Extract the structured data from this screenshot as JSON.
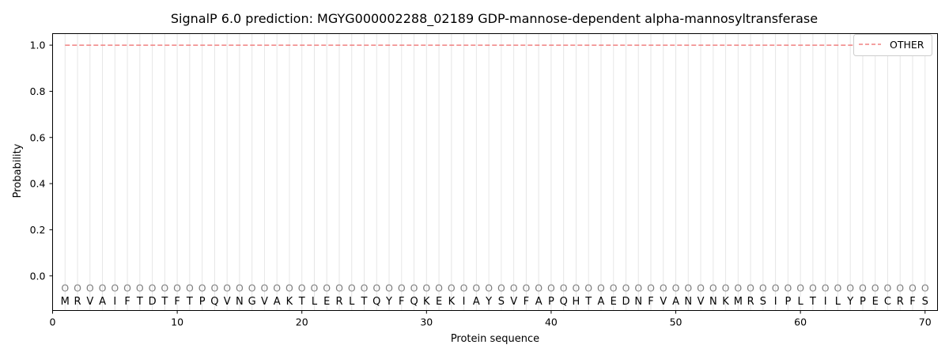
{
  "chart_data": {
    "type": "line",
    "title": "SignalP 6.0 prediction: MGYG000002288_02189 GDP-mannose-dependent alpha-mannosyltransferase",
    "xlabel": "Protein sequence",
    "ylabel": "Probability",
    "xlim": [
      0,
      71
    ],
    "ylim": [
      -0.15,
      1.05
    ],
    "xticks": [
      0,
      10,
      20,
      30,
      40,
      50,
      60,
      70
    ],
    "yticks": [
      0.0,
      0.2,
      0.4,
      0.6,
      0.8,
      1.0
    ],
    "ytick_labels": [
      "0.0",
      "0.2",
      "0.4",
      "0.6",
      "0.8",
      "1.0"
    ],
    "sequence": [
      "M",
      "R",
      "V",
      "A",
      "I",
      "F",
      "T",
      "D",
      "T",
      "F",
      "T",
      "P",
      "Q",
      "V",
      "N",
      "G",
      "V",
      "A",
      "K",
      "T",
      "L",
      "E",
      "R",
      "L",
      "T",
      "Q",
      "Y",
      "F",
      "Q",
      "K",
      "E",
      "K",
      "I",
      "A",
      "Y",
      "S",
      "V",
      "F",
      "A",
      "P",
      "Q",
      "H",
      "T",
      "A",
      "E",
      "D",
      "N",
      "F",
      "V",
      "A",
      "N",
      "V",
      "N",
      "K",
      "M",
      "R",
      "S",
      "I",
      "P",
      "L",
      "T",
      "I",
      "L",
      "Y",
      "P",
      "E",
      "C",
      "R",
      "F",
      "S"
    ],
    "state_label": "O",
    "series": [
      {
        "name": "OTHER",
        "color": "#f08080",
        "style": "dashed",
        "x_start": 1,
        "x_end": 70,
        "value": 1.0
      }
    ],
    "grid": "vertical lines at each residue",
    "legend": "top-right"
  }
}
